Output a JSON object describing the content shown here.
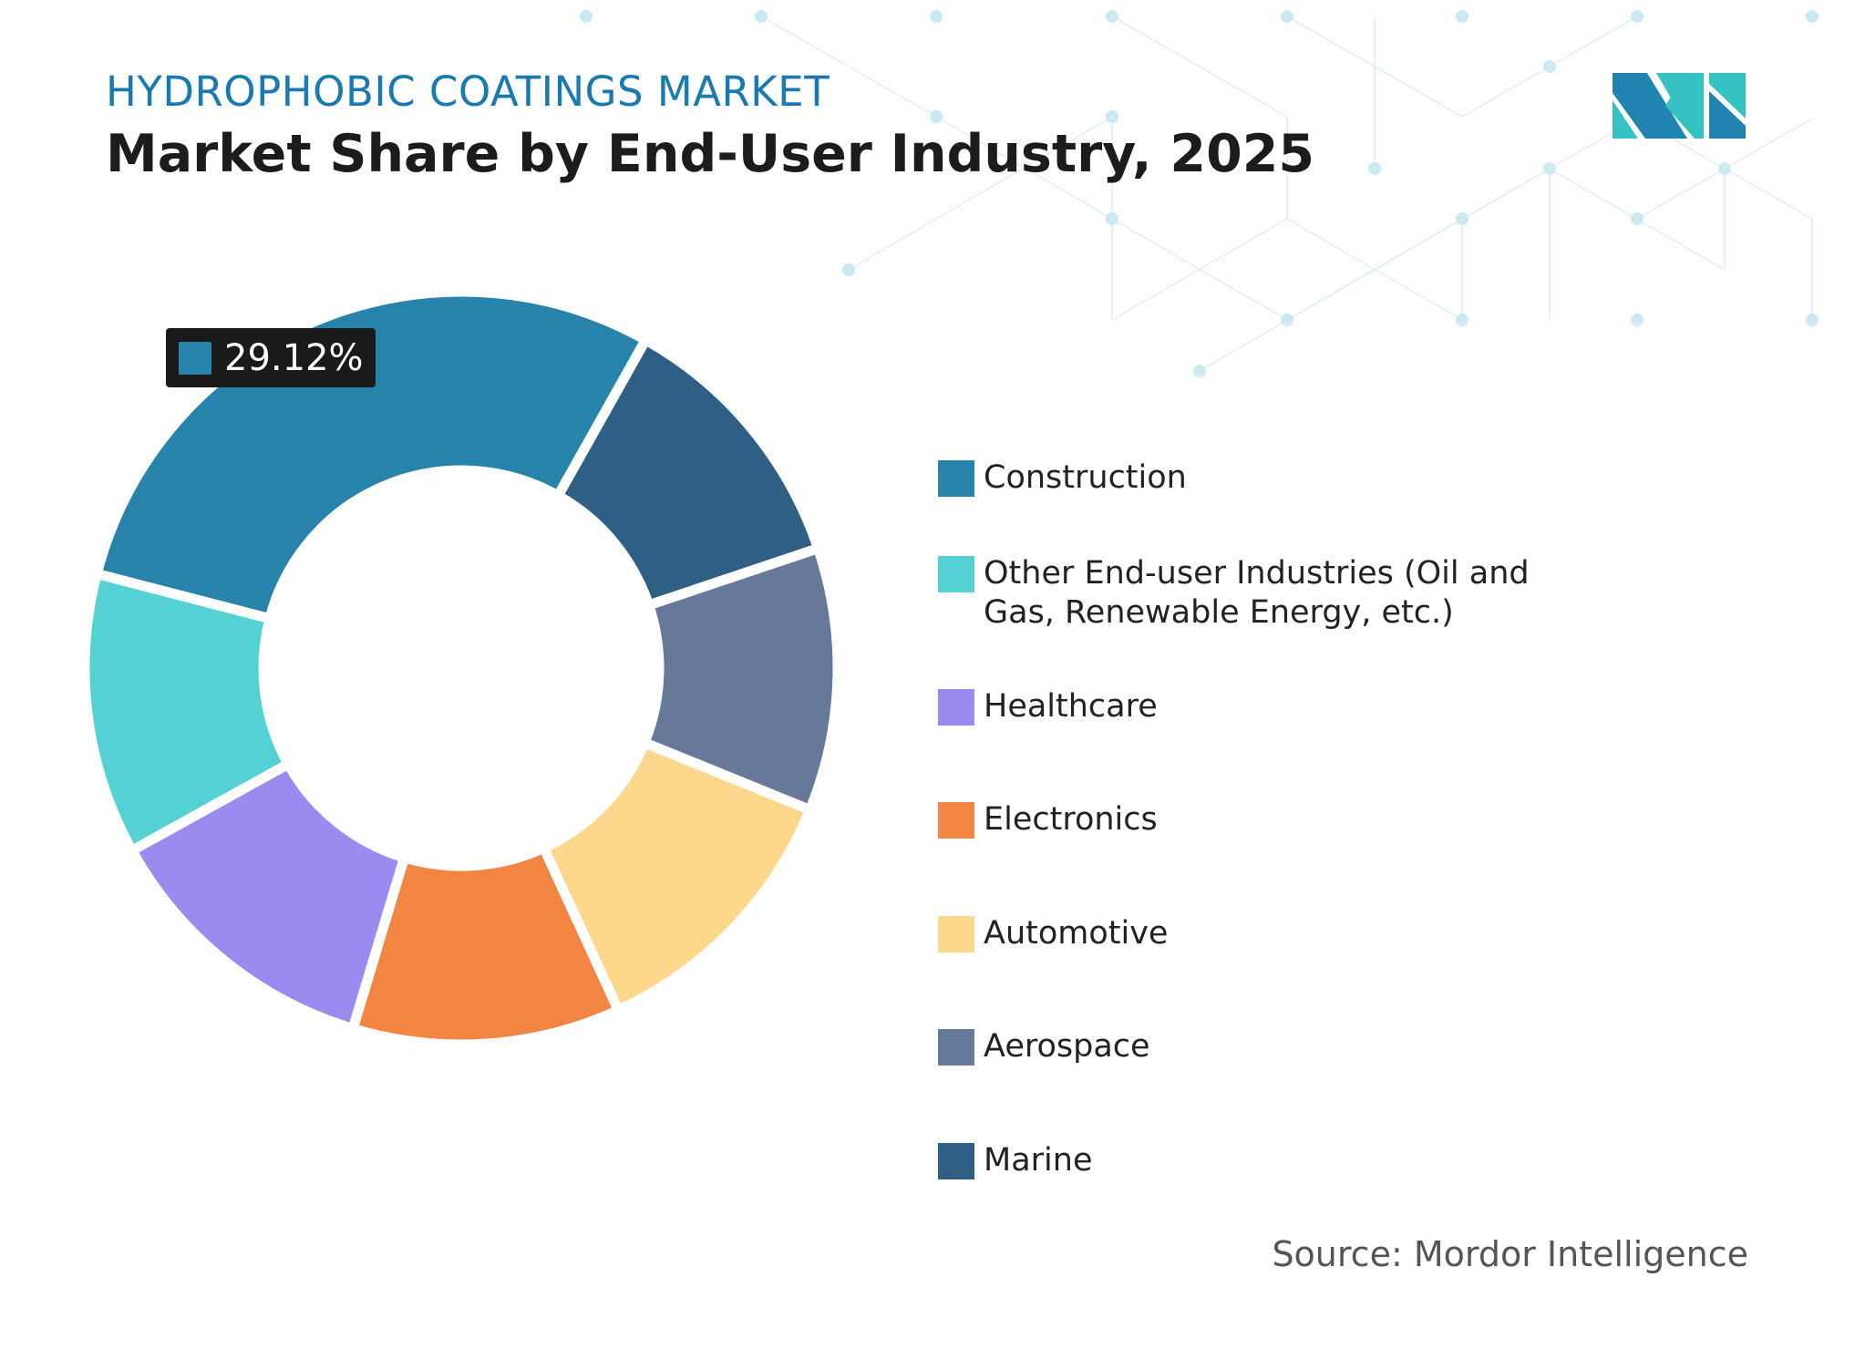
{
  "header": {
    "subtitle": "HYDROPHOBIC COATINGS MARKET",
    "title": "Market Share by End-User Industry, 2025"
  },
  "chart_data": {
    "type": "pie",
    "style": "donut",
    "title": "Market Share by End-User Industry, 2025",
    "unit": "%",
    "start_category": "Construction",
    "direction": "clockwise",
    "slices": [
      {
        "label": "Construction",
        "value": 29.12,
        "color": "#2783aa",
        "labeled": true
      },
      {
        "label": "Marine",
        "value": 11.7,
        "color": "#2f5f84"
      },
      {
        "label": "Aerospace",
        "value": 11.3,
        "color": "#667999"
      },
      {
        "label": "Automotive",
        "value": 12.0,
        "color": "#fdd78c"
      },
      {
        "label": "Electronics",
        "value": 11.5,
        "color": "#f38543"
      },
      {
        "label": "Healthcare",
        "value": 12.3,
        "color": "#9a8bef"
      },
      {
        "label": "Other End-user Industries (Oil and Gas, Renewable Energy, etc.)",
        "value": 12.08,
        "color": "#54d1d3"
      }
    ],
    "data_label": "29.12%",
    "legend_position": "right"
  },
  "legend": {
    "items": [
      {
        "label": "Construction",
        "color": "#2783aa"
      },
      {
        "label": "Other End-user Industries (Oil and Gas, Renewable Energy, etc.)",
        "color": "#54d1d3"
      },
      {
        "label": "Healthcare",
        "color": "#9a8bef"
      },
      {
        "label": "Electronics",
        "color": "#f38543"
      },
      {
        "label": "Automotive",
        "color": "#fdd78c"
      },
      {
        "label": "Aerospace",
        "color": "#667999"
      },
      {
        "label": "Marine",
        "color": "#2f5f84"
      }
    ]
  },
  "footer": {
    "source": "Source: Mordor Intelligence"
  },
  "logo": {
    "text": "MI",
    "colors": [
      "#2083b0",
      "#36c2c3"
    ]
  }
}
